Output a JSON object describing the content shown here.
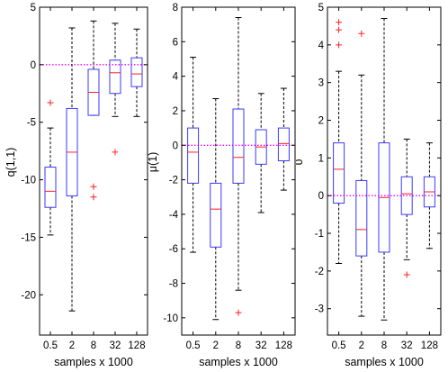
{
  "chart_data": [
    {
      "type": "boxplot",
      "ylabel": "q(1,1)",
      "xlabel": "samples x 1000",
      "categories": [
        "0.5",
        "2",
        "8",
        "32",
        "128"
      ],
      "ylim": [
        -23.5,
        5
      ],
      "yticks": [
        5,
        0,
        -5,
        -10,
        -15,
        -20
      ],
      "yticklabels": [
        "5",
        "0",
        "-5",
        "-10",
        "-15",
        "-20"
      ],
      "reference_line": 0,
      "boxes": [
        {
          "category": "0.5",
          "whisker_low": -14.8,
          "q1": -12.4,
          "median": -11.0,
          "q3": -8.9,
          "whisker_high": -5.5,
          "outliers": [
            -3.3
          ]
        },
        {
          "category": "2",
          "whisker_low": -21.4,
          "q1": -11.4,
          "median": -7.6,
          "q3": -3.8,
          "whisker_high": 3.2,
          "outliers": []
        },
        {
          "category": "8",
          "whisker_low": -4.4,
          "q1": -4.4,
          "median": -2.4,
          "q3": -0.4,
          "whisker_high": 3.8,
          "outliers": [
            -10.6,
            -11.5
          ]
        },
        {
          "category": "32",
          "whisker_low": -4.5,
          "q1": -2.5,
          "median": -0.7,
          "q3": 0.4,
          "whisker_high": 3.6,
          "outliers": [
            -7.6
          ]
        },
        {
          "category": "128",
          "whisker_low": -4.5,
          "q1": -1.9,
          "median": -0.8,
          "q3": 0.6,
          "whisker_high": 3.1,
          "outliers": []
        }
      ]
    },
    {
      "type": "boxplot",
      "ylabel": "μ(1)",
      "xlabel": "samples x 1000",
      "categories": [
        "0.5",
        "2",
        "8",
        "32",
        "128"
      ],
      "ylim": [
        -11,
        8
      ],
      "yticks": [
        8,
        6,
        4,
        2,
        0,
        -2,
        -4,
        -6,
        -8,
        -10
      ],
      "yticklabels": [
        "8",
        "6",
        "4",
        "2",
        "0",
        "-2",
        "-4",
        "-6",
        "-8",
        "-10"
      ],
      "reference_line": 0,
      "boxes": [
        {
          "category": "0.5",
          "whisker_low": -6.2,
          "q1": -2.2,
          "median": -0.4,
          "q3": 1.0,
          "whisker_high": 5.1,
          "outliers": []
        },
        {
          "category": "2",
          "whisker_low": -10.1,
          "q1": -5.9,
          "median": -3.7,
          "q3": -2.2,
          "whisker_high": 2.7,
          "outliers": []
        },
        {
          "category": "8",
          "whisker_low": -8.4,
          "q1": -2.2,
          "median": -0.7,
          "q3": 2.1,
          "whisker_high": 7.4,
          "outliers": [
            -9.7
          ]
        },
        {
          "category": "32",
          "whisker_low": -3.9,
          "q1": -1.1,
          "median": -0.1,
          "q3": 0.9,
          "whisker_high": 3.0,
          "outliers": []
        },
        {
          "category": "128",
          "whisker_low": -2.6,
          "q1": -0.9,
          "median": 0.1,
          "q3": 1.0,
          "whisker_high": 3.3,
          "outliers": []
        }
      ]
    },
    {
      "type": "boxplot",
      "ylabel": "υ",
      "xlabel": "samples x 1000",
      "categories": [
        "0.5",
        "2",
        "8",
        "32",
        "128"
      ],
      "ylim": [
        -3.7,
        5
      ],
      "yticks": [
        5,
        4,
        3,
        2,
        1,
        0,
        -1,
        -2,
        -3
      ],
      "yticklabels": [
        "5",
        "4",
        "3",
        "2",
        "1",
        "0",
        "-1",
        "-2",
        "-3"
      ],
      "reference_line": 0,
      "boxes": [
        {
          "category": "0.5",
          "whisker_low": -1.8,
          "q1": -0.2,
          "median": 0.7,
          "q3": 1.4,
          "whisker_high": 3.3,
          "outliers": [
            4.6,
            4.4,
            4.0
          ]
        },
        {
          "category": "2",
          "whisker_low": -3.2,
          "q1": -1.6,
          "median": -0.9,
          "q3": 0.4,
          "whisker_high": 3.2,
          "outliers": [
            4.3
          ]
        },
        {
          "category": "8",
          "whisker_low": -3.3,
          "q1": -1.5,
          "median": -0.05,
          "q3": 1.4,
          "whisker_high": 4.7,
          "outliers": []
        },
        {
          "category": "32",
          "whisker_low": -1.7,
          "q1": -0.5,
          "median": 0.05,
          "q3": 0.5,
          "whisker_high": 1.5,
          "outliers": [
            -2.1
          ]
        },
        {
          "category": "128",
          "whisker_low": -1.4,
          "q1": -0.3,
          "median": 0.1,
          "q3": 0.5,
          "whisker_high": 1.4,
          "outliers": []
        }
      ]
    }
  ],
  "colors": {
    "box": "#3a3aff",
    "median": "#ff2020",
    "whisker": "#000000",
    "outlier": "#ff2020",
    "reference_line": "#ff00ff"
  }
}
